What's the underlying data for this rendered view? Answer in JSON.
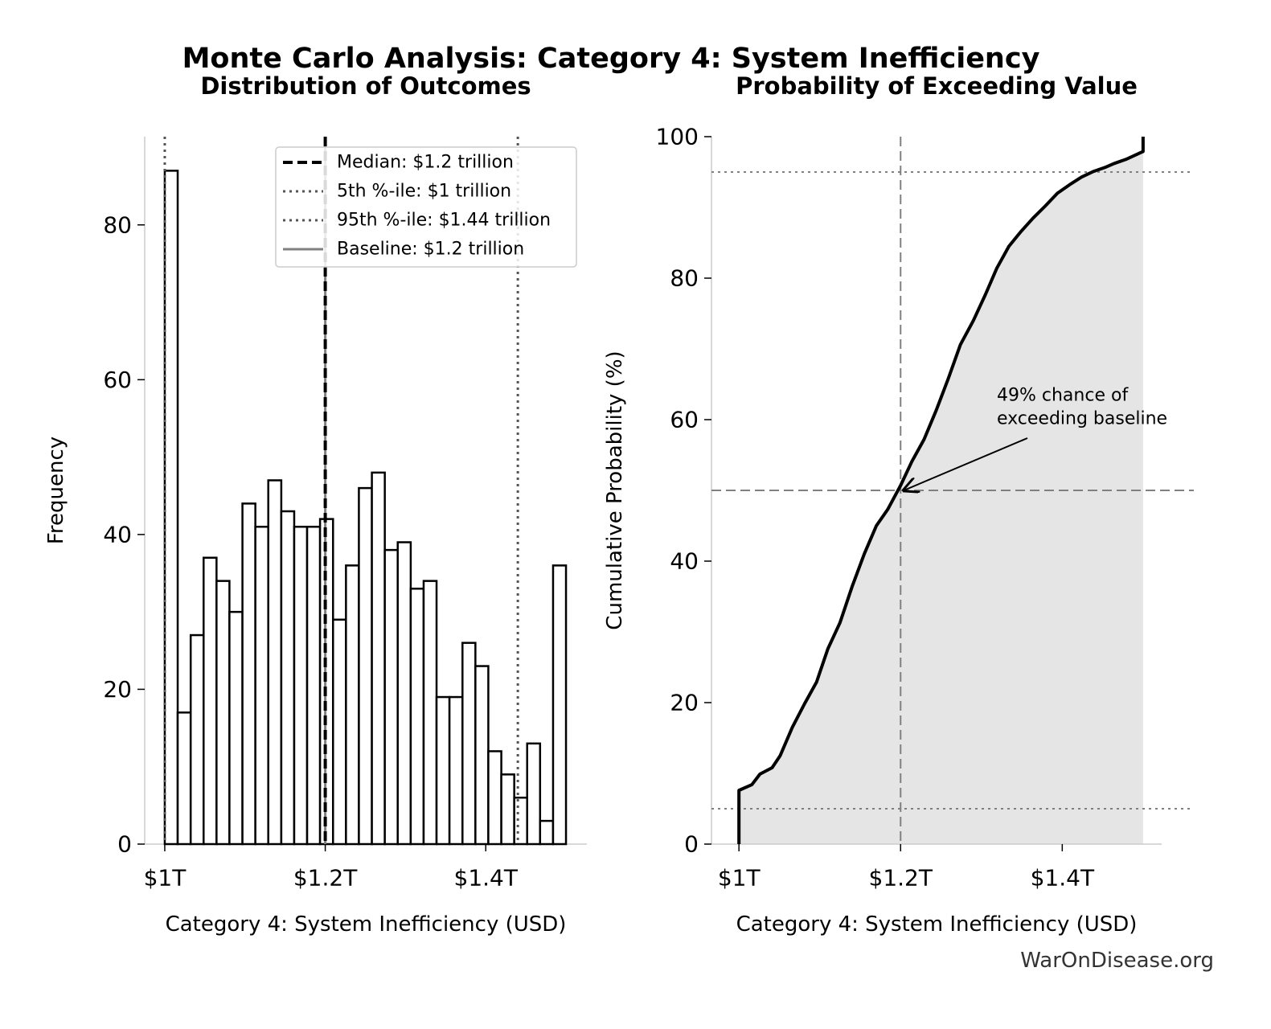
{
  "title": "Monte Carlo Analysis: Category 4: System Inefficiency",
  "watermark": "WarOnDisease.org",
  "chart_data": [
    {
      "type": "histogram",
      "title": "Distribution of Outcomes",
      "xlabel": "Category 4: System Inefficiency (USD)",
      "ylabel": "Frequency",
      "bins": [
        1,
        1.0161,
        1.0323,
        1.0484,
        1.0645,
        1.0806,
        1.0968,
        1.1129,
        1.129,
        1.1452,
        1.1613,
        1.1774,
        1.1935,
        1.2097,
        1.2258,
        1.2419,
        1.2581,
        1.2742,
        1.2903,
        1.3065,
        1.3226,
        1.3387,
        1.3548,
        1.371,
        1.3871,
        1.4032,
        1.4194,
        1.4355,
        1.4516,
        1.4677,
        1.4839,
        1.5
      ],
      "values": [
        87,
        17,
        27,
        37,
        34,
        30,
        44,
        41,
        47,
        43,
        41,
        41,
        42,
        29,
        36,
        46,
        48,
        38,
        39,
        33,
        34,
        19,
        19,
        26,
        23,
        12,
        9,
        6,
        13,
        3,
        36
      ],
      "color": "#ffffff",
      "edgecolor": "#000000",
      "xlim": [
        0.975,
        1.526
      ],
      "ylim": [
        0,
        91.4
      ],
      "xticks": [
        {
          "value": 1,
          "label": "$1T"
        },
        {
          "value": 1.2,
          "label": "$1.2T"
        },
        {
          "value": 1.4,
          "label": "$1.4T"
        }
      ],
      "yticks": [
        0,
        20,
        40,
        60,
        80
      ],
      "legend": "upper right",
      "reference_lines": [
        {
          "name": "Median: $1.2 trillion",
          "value": 1.2,
          "style": "dashed",
          "color": "#000000"
        },
        {
          "name": "5th %-ile: $1 trillion",
          "value": 1,
          "style": "dotted",
          "color": "#555555"
        },
        {
          "name": "95th %-ile: $1.44 trillion",
          "value": 1.44,
          "style": "dotted",
          "color": "#555555"
        },
        {
          "name": "Baseline: $1.2 trillion",
          "value": 1.2,
          "style": "solid",
          "color": "#808080"
        }
      ]
    },
    {
      "type": "line",
      "title": "Probability of Exceeding Value",
      "xlabel": "Category 4: System Inefficiency (USD)",
      "ylabel": "Cumulative Probability (%)",
      "x": [
        1.0,
        1.0,
        1.016,
        1.026,
        1.041,
        1.051,
        1.066,
        1.081,
        1.096,
        1.11,
        1.125,
        1.14,
        1.155,
        1.17,
        1.184,
        1.2,
        1.214,
        1.229,
        1.244,
        1.259,
        1.274,
        1.29,
        1.305,
        1.319,
        1.334,
        1.349,
        1.364,
        1.379,
        1.394,
        1.409,
        1.424,
        1.439,
        1.454,
        1.464,
        1.479,
        1.5,
        1.5
      ],
      "values": [
        0,
        7.6,
        8.4,
        9.9,
        10.8,
        12.5,
        16.5,
        19.8,
        22.9,
        27.6,
        31.3,
        36.4,
        41.0,
        45.0,
        47.3,
        50.7,
        54.1,
        57.2,
        61.3,
        65.8,
        70.6,
        74.0,
        77.7,
        81.4,
        84.5,
        86.6,
        88.5,
        90.2,
        92.0,
        93.2,
        94.3,
        95.1,
        95.7,
        96.2,
        96.8,
        97.9,
        100
      ],
      "color": "#000000",
      "fill_color": "#e5e5e5",
      "xlim": [
        0.966,
        1.523
      ],
      "ylim": [
        0,
        100
      ],
      "xticks": [
        {
          "value": 1,
          "label": "$1T"
        },
        {
          "value": 1.2,
          "label": "$1.2T"
        },
        {
          "value": 1.4,
          "label": "$1.4T"
        }
      ],
      "yticks": [
        0,
        20,
        40,
        60,
        80,
        100
      ],
      "reference_lines": [
        {
          "axis": "x",
          "value": 1.2,
          "style": "dashed",
          "color": "#808080"
        },
        {
          "axis": "y",
          "value": 50,
          "style": "dashed",
          "color": "#808080"
        },
        {
          "axis": "y",
          "value": 5,
          "style": "dotted",
          "color": "#808080"
        },
        {
          "axis": "y",
          "value": 95,
          "style": "dotted",
          "color": "#808080"
        }
      ],
      "annotation": [
        "49% chance of",
        "exceeding baseline"
      ]
    }
  ]
}
